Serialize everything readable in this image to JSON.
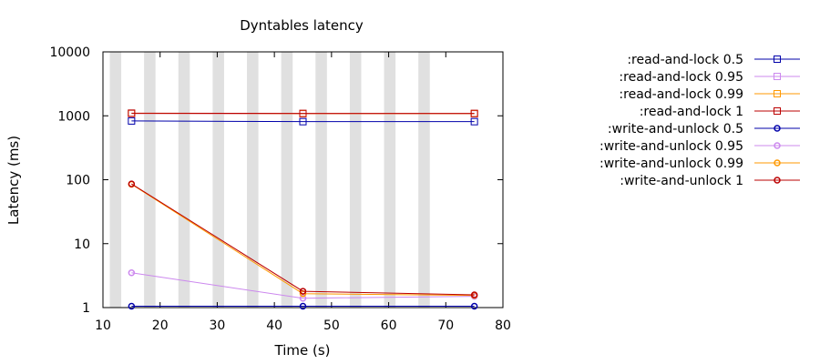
{
  "chart_data": {
    "type": "line",
    "title": "Dyntables latency",
    "xlabel": "Time (s)",
    "ylabel": "Latency (ms)",
    "xlim": [
      10,
      80
    ],
    "ylim": [
      1,
      10000
    ],
    "yscale": "log",
    "xticks": [
      10,
      20,
      30,
      40,
      50,
      60,
      70,
      80
    ],
    "yticks": [
      1,
      10,
      100,
      1000,
      10000
    ],
    "ytick_labels": [
      "1",
      "10",
      "100",
      "1000",
      "10000"
    ],
    "grid": false,
    "background_bands": {
      "color": "#e0e0e0",
      "ranges": [
        [
          11.2,
          13.2
        ],
        [
          17.2,
          19.2
        ],
        [
          23.2,
          25.2
        ],
        [
          29.2,
          31.2
        ],
        [
          35.2,
          37.2
        ],
        [
          41.2,
          43.2
        ],
        [
          47.2,
          49.2
        ],
        [
          53.2,
          55.2
        ],
        [
          59.2,
          61.2
        ],
        [
          65.2,
          67.2
        ]
      ]
    },
    "legend_position": "right",
    "x": [
      15,
      45,
      75
    ],
    "series": [
      {
        "name": ":read-and-lock 0.5",
        "color": "#0000aa",
        "marker": "square",
        "values": [
          830,
          810,
          810
        ]
      },
      {
        "name": ":read-and-lock 0.95",
        "color": "#cc88ee",
        "marker": "square",
        "values": [
          1080,
          1070,
          1070
        ]
      },
      {
        "name": ":read-and-lock 0.99",
        "color": "#ff9900",
        "marker": "square",
        "values": [
          1090,
          1080,
          1080
        ]
      },
      {
        "name": ":read-and-lock 1",
        "color": "#bb0000",
        "marker": "square",
        "values": [
          1100,
          1090,
          1090
        ]
      },
      {
        "name": ":write-and-unlock 0.5",
        "color": "#0000aa",
        "marker": "circle",
        "values": [
          1.05,
          1.05,
          1.05
        ]
      },
      {
        "name": ":write-and-unlock 0.95",
        "color": "#cc88ee",
        "marker": "circle",
        "values": [
          3.5,
          1.4,
          1.5
        ]
      },
      {
        "name": ":write-and-unlock 0.99",
        "color": "#ff9900",
        "marker": "circle",
        "values": [
          85,
          1.65,
          1.55
        ]
      },
      {
        "name": ":write-and-unlock 1",
        "color": "#bb0000",
        "marker": "circle",
        "values": [
          86,
          1.8,
          1.58
        ]
      }
    ]
  }
}
